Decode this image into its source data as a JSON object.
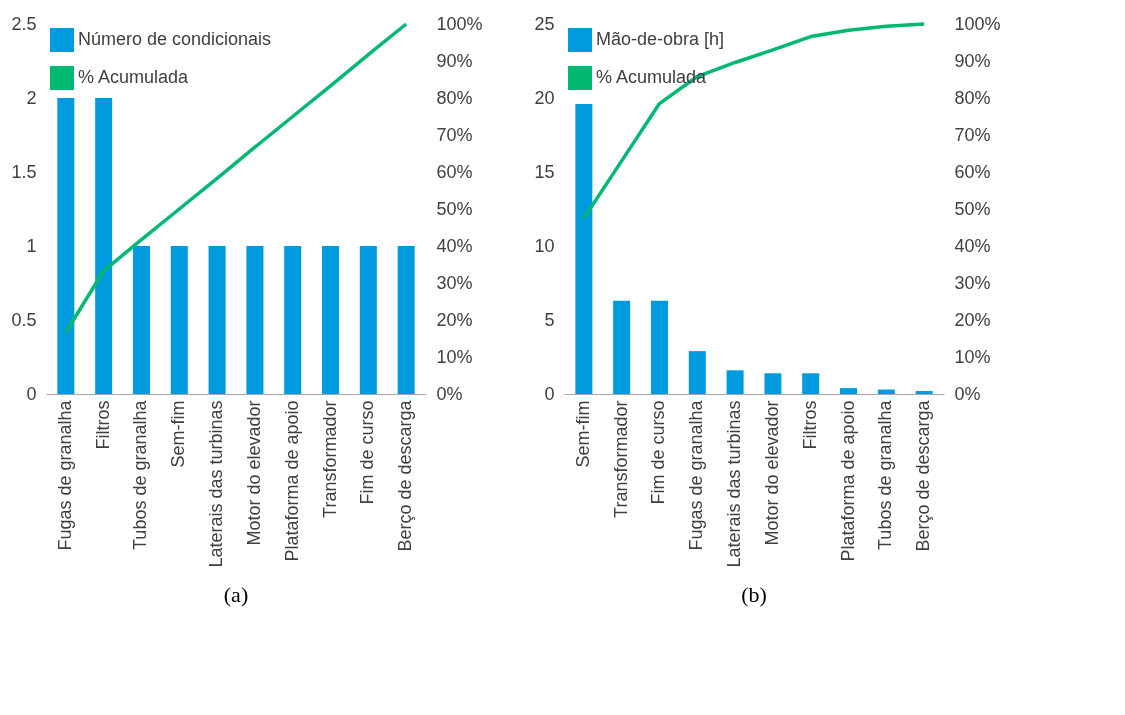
{
  "chart_data": [
    {
      "type": "bar",
      "categories": [
        "Fugas de granalha",
        "Filtros",
        "Tubos de granalha",
        "Sem-fim",
        "Laterais das turbinas",
        "Motor do elevador",
        "Plataforma de apoio",
        "Transformador",
        "Fim de curso",
        "Berço de descarga"
      ],
      "series": [
        {
          "name": "Número de condicionais",
          "color": "#009ade",
          "values": [
            2,
            2,
            1,
            1,
            1,
            1,
            1,
            1,
            1,
            1
          ]
        },
        {
          "name": "% Acumulada",
          "color": "#00b872",
          "type": "line",
          "axis": "y2",
          "values": [
            16.7,
            33.3,
            41.7,
            50,
            58.3,
            66.7,
            75,
            83.3,
            91.7,
            100
          ]
        }
      ],
      "ylim": [
        0,
        2.5
      ],
      "yticks": [
        0,
        0.5,
        1,
        1.5,
        2,
        2.5
      ],
      "y2lim": [
        0,
        100
      ],
      "y2ticks": [
        {
          "value": 0,
          "label": "0%"
        },
        {
          "value": 10,
          "label": "10%"
        },
        {
          "value": 20,
          "label": "20%"
        },
        {
          "value": 30,
          "label": "30%"
        },
        {
          "value": 40,
          "label": "40%"
        },
        {
          "value": 50,
          "label": "50%"
        },
        {
          "value": 60,
          "label": "60%"
        },
        {
          "value": 70,
          "label": "70%"
        },
        {
          "value": 80,
          "label": "80%"
        },
        {
          "value": 90,
          "label": "90%"
        },
        {
          "value": 100,
          "label": "100%"
        }
      ],
      "legend": "top left",
      "annotations": [
        "(a)"
      ]
    },
    {
      "type": "bar",
      "categories": [
        "Sem-fim",
        "Transformador",
        "Fim de curso",
        "Fugas de granalha",
        "Laterais das turbinas",
        "Motor do elevador",
        "Filtros",
        "Plataforma de apoio",
        "Tubos de granalha",
        "Berço de descarga"
      ],
      "series": [
        {
          "name": "Mão-de-obra [h]",
          "color": "#009ade",
          "values": [
            19.6,
            6.3,
            6.3,
            2.9,
            1.6,
            1.4,
            1.4,
            0.4,
            0.3,
            0.2
          ]
        },
        {
          "name": "% Acumulada",
          "color": "#00b872",
          "type": "line",
          "axis": "y2",
          "values": [
            47.5,
            63,
            78.5,
            85.8,
            89.6,
            93,
            96.6,
            98.3,
            99.4,
            100
          ]
        }
      ],
      "ylim": [
        0,
        25
      ],
      "yticks": [
        0,
        5,
        10,
        15,
        20,
        25
      ],
      "y2lim": [
        0,
        100
      ],
      "y2ticks": [
        {
          "value": 0,
          "label": "0%"
        },
        {
          "value": 10,
          "label": "10%"
        },
        {
          "value": 20,
          "label": "20%"
        },
        {
          "value": 30,
          "label": "30%"
        },
        {
          "value": 40,
          "label": "40%"
        },
        {
          "value": 50,
          "label": "50%"
        },
        {
          "value": 60,
          "label": "60%"
        },
        {
          "value": 70,
          "label": "70%"
        },
        {
          "value": 80,
          "label": "80%"
        },
        {
          "value": 90,
          "label": "90%"
        },
        {
          "value": 100,
          "label": "100%"
        }
      ],
      "legend": "top left",
      "annotations": [
        "(b)"
      ]
    }
  ]
}
